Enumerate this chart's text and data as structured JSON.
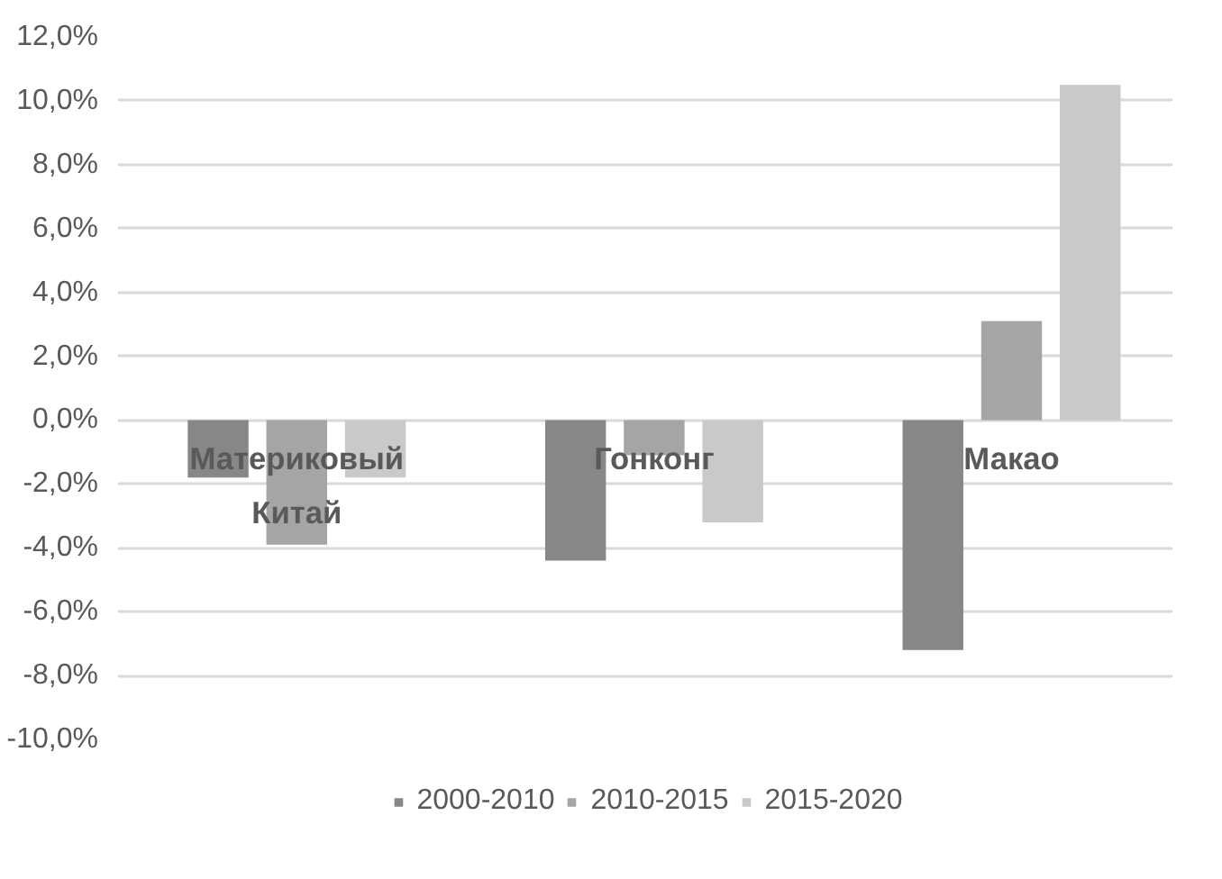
{
  "chart_data": {
    "type": "bar",
    "categories": [
      "Материковый Китай",
      "Гонконг",
      "Макао"
    ],
    "series": [
      {
        "name": "2000-2010",
        "color": "#878787",
        "values": [
          -1.8,
          -4.4,
          -7.2
        ]
      },
      {
        "name": "2010-2015",
        "color": "#a5a5a5",
        "values": [
          -3.9,
          -1.1,
          3.1
        ]
      },
      {
        "name": "2015-2020",
        "color": "#c9c9c9",
        "values": [
          -1.8,
          -3.2,
          10.5
        ]
      }
    ],
    "ylim": [
      -10,
      12
    ],
    "yticks": [
      {
        "value": -10,
        "label": "-10,0%"
      },
      {
        "value": -8,
        "label": "-8,0%"
      },
      {
        "value": -6,
        "label": "-6,0%"
      },
      {
        "value": -4,
        "label": "-4,0%"
      },
      {
        "value": -2,
        "label": "-2,0%"
      },
      {
        "value": 0,
        "label": "0,0%"
      },
      {
        "value": 2,
        "label": "2,0%"
      },
      {
        "value": 4,
        "label": "4,0%"
      },
      {
        "value": 6,
        "label": "6,0%"
      },
      {
        "value": 8,
        "label": "8,0%"
      },
      {
        "value": 10,
        "label": "10,0%"
      },
      {
        "value": 12,
        "label": "12,0%"
      }
    ],
    "grid": "y",
    "legend": "bottom"
  }
}
